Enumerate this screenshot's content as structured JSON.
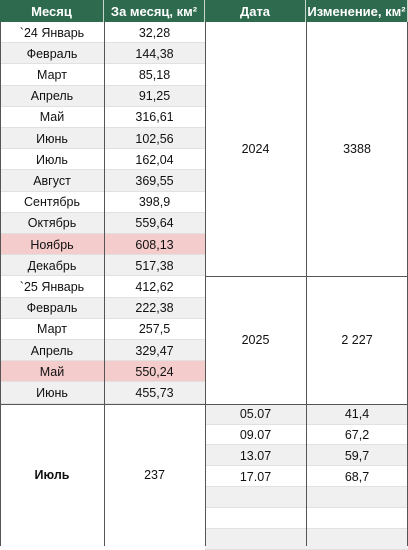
{
  "headers": [
    "Месяц",
    "За месяц, км²",
    "Дата",
    "Изменение, км²"
  ],
  "months": [
    {
      "month": "`24 Январь",
      "area": "32,28",
      "highlight": false
    },
    {
      "month": "Февраль",
      "area": "144,38",
      "highlight": false
    },
    {
      "month": "Март",
      "area": "85,18",
      "highlight": false
    },
    {
      "month": "Апрель",
      "area": "91,25",
      "highlight": false
    },
    {
      "month": "Май",
      "area": "316,61",
      "highlight": false
    },
    {
      "month": "Июнь",
      "area": "102,56",
      "highlight": false
    },
    {
      "month": "Июль",
      "area": "162,04",
      "highlight": false
    },
    {
      "month": "Август",
      "area": "369,55",
      "highlight": false
    },
    {
      "month": "Сентябрь",
      "area": "398,9",
      "highlight": false
    },
    {
      "month": "Октябрь",
      "area": "559,64",
      "highlight": false
    },
    {
      "month": "Ноябрь",
      "area": "608,13",
      "highlight": true
    },
    {
      "month": "Декабрь",
      "area": "517,38",
      "highlight": false
    },
    {
      "month": "`25 Январь",
      "area": "412,62",
      "highlight": false
    },
    {
      "month": "Февраль",
      "area": "222,38",
      "highlight": false
    },
    {
      "month": "Март",
      "area": "257,5",
      "highlight": false
    },
    {
      "month": "Апрель",
      "area": "329,47",
      "highlight": false
    },
    {
      "month": "Май",
      "area": "550,24",
      "highlight": true
    },
    {
      "month": "Июнь",
      "area": "455,73",
      "highlight": false
    }
  ],
  "years": [
    {
      "year": "2024",
      "change": "3388"
    },
    {
      "year": "2025",
      "change": "2 227"
    }
  ],
  "july": {
    "month": "Июль",
    "area": "237",
    "entries": [
      {
        "date": "05.07",
        "change": "41,4"
      },
      {
        "date": "09.07",
        "change": "67,2"
      },
      {
        "date": "13.07",
        "change": "59,7"
      },
      {
        "date": "17.07",
        "change": "68,7"
      },
      {
        "date": "",
        "change": ""
      },
      {
        "date": "",
        "change": ""
      },
      {
        "date": "",
        "change": ""
      }
    ]
  },
  "colors": {
    "header_bg": "#2e6b4e",
    "highlight_bg": "#f4cccc",
    "stripe_bg": "#f0f0f0"
  }
}
